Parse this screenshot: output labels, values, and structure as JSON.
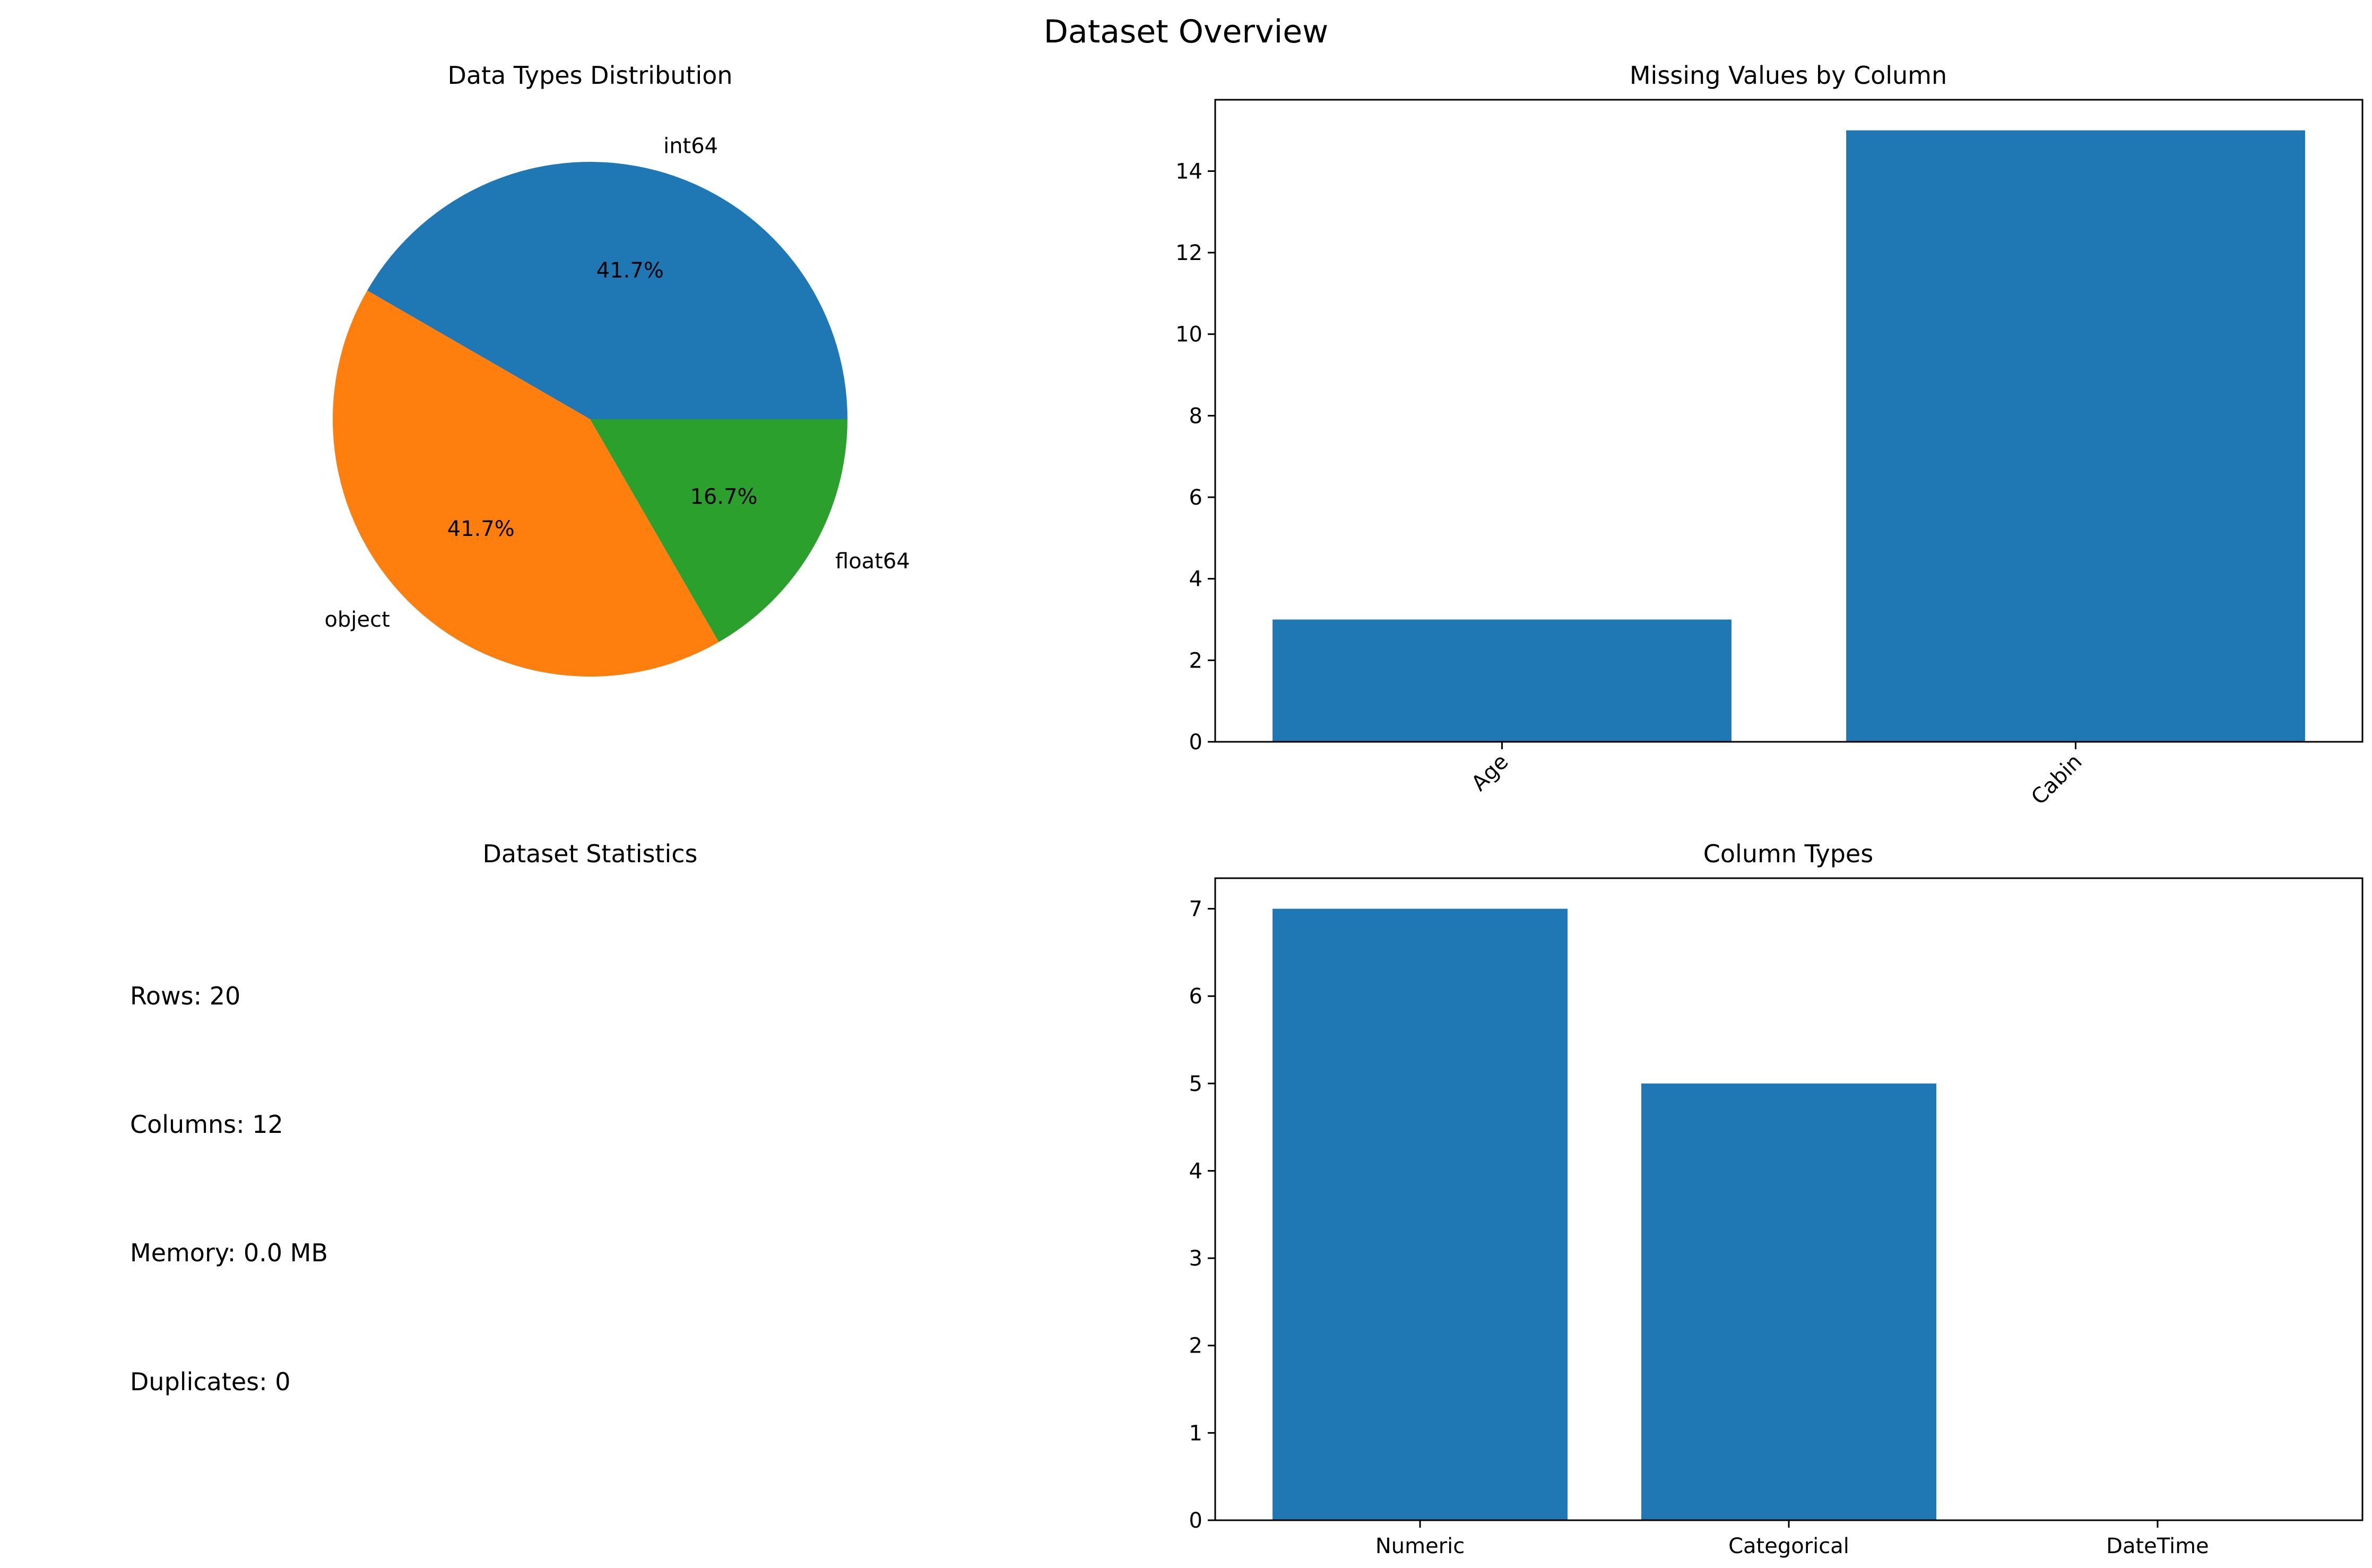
{
  "suptitle": "Dataset Overview",
  "chart_data": [
    {
      "type": "pie",
      "title": "Data Types Distribution",
      "labels": [
        "int64",
        "object",
        "float64"
      ],
      "values": [
        5,
        5,
        2
      ],
      "percent_labels": [
        "41.7%",
        "41.7%",
        "16.7%"
      ],
      "colors": [
        "#1f77b4",
        "#ff7f0e",
        "#2ca02c"
      ]
    },
    {
      "type": "bar",
      "title": "Missing Values by Column",
      "categories": [
        "Age",
        "Cabin"
      ],
      "values": [
        3,
        15
      ],
      "ylim": [
        0,
        15.75
      ],
      "yticks": [
        0,
        2,
        4,
        6,
        8,
        10,
        12,
        14
      ],
      "xtick_rotation": 45,
      "color": "#1f77b4"
    },
    {
      "type": "table",
      "title": "Dataset Statistics",
      "lines": [
        "Rows: 20",
        "Columns: 12",
        "Memory: 0.0 MB",
        "Duplicates: 0"
      ]
    },
    {
      "type": "bar",
      "title": "Column Types",
      "categories": [
        "Numeric",
        "Categorical",
        "DateTime"
      ],
      "values": [
        7,
        5,
        0
      ],
      "ylim": [
        0,
        7.35
      ],
      "yticks": [
        0,
        1,
        2,
        3,
        4,
        5,
        6,
        7
      ],
      "color": "#1f77b4"
    }
  ]
}
